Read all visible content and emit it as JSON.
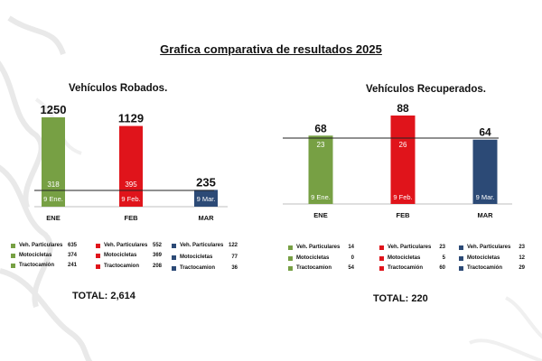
{
  "title": "Grafica comparativa de resultados 2025",
  "charts": {
    "robados": {
      "subtitle": "Vehículos Robados.",
      "total": "TOTAL: 2,614",
      "chart_data": {
        "type": "bar",
        "categories": [
          "ENE",
          "FEB",
          "MAR"
        ],
        "values": [
          1250,
          1129,
          235
        ],
        "value_labels": [
          "1250",
          "1129",
          "235"
        ],
        "inner_values": [
          "318",
          "395",
          ""
        ],
        "date_labels": [
          "9 Ene.",
          "9 Feb.",
          "9 Mar."
        ],
        "colors": [
          "#77a044",
          "#e0141b",
          "#2c4a76"
        ],
        "reference_line": true,
        "ylim": [
          0,
          1250
        ]
      },
      "legend": [
        [
          {
            "label": "Veh. Particulares",
            "value": "635"
          },
          {
            "label": "Motocicletas",
            "value": "374"
          },
          {
            "label": "Tractocamión",
            "value": "241"
          }
        ],
        [
          {
            "label": "Veh. Particulares",
            "value": "552"
          },
          {
            "label": "Motocicletas",
            "value": "369"
          },
          {
            "label": "Tractocamion",
            "value": "208"
          }
        ],
        [
          {
            "label": "Veh. Particulares",
            "value": "122"
          },
          {
            "label": "Motocicletas",
            "value": "77"
          },
          {
            "label": "Tractocamion",
            "value": "36"
          }
        ]
      ]
    },
    "recuperados": {
      "subtitle": "Vehículos Recuperados.",
      "total": "TOTAL: 220",
      "chart_data": {
        "type": "bar",
        "categories": [
          "ENE",
          "FEB",
          "MAR"
        ],
        "values": [
          68,
          88,
          64
        ],
        "value_labels": [
          "68",
          "88",
          "64"
        ],
        "inner_values": [
          "23",
          "26",
          ""
        ],
        "date_labels": [
          "9 Ene.",
          "9 Feb.",
          "9 Mar."
        ],
        "colors": [
          "#77a044",
          "#e0141b",
          "#2c4a76"
        ],
        "reference_line": true,
        "ylim": [
          0,
          88
        ]
      },
      "legend": [
        [
          {
            "label": "Veh. Particulares",
            "value": "14"
          },
          {
            "label": "Motocicletas",
            "value": "0"
          },
          {
            "label": "Tractocamion",
            "value": "54"
          }
        ],
        [
          {
            "label": "Veh. Particulares",
            "value": "23"
          },
          {
            "label": "Motocicletas",
            "value": "5"
          },
          {
            "label": "Tractocamión",
            "value": "60"
          }
        ],
        [
          {
            "label": "Veh. Particulares",
            "value": "23"
          },
          {
            "label": "Motocicletas",
            "value": "12"
          },
          {
            "label": "Tractocamión",
            "value": "29"
          }
        ]
      ]
    }
  }
}
